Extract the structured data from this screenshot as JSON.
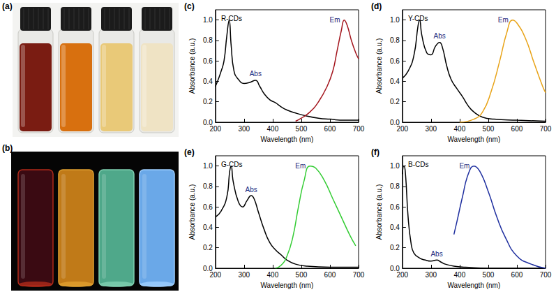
{
  "panels": [
    {
      "label": "(a)"
    },
    {
      "label": "(b)"
    }
  ],
  "chart_data": [
    {
      "label": "(c)",
      "type": "line",
      "title": "R-CDs",
      "x_label": "Wavelength (nm)",
      "y_label": "Absorbance (a.u.)",
      "xlim": [
        200,
        700
      ],
      "xticks": [
        200,
        300,
        400,
        500,
        600,
        700
      ],
      "ylim": [
        0,
        1.1
      ],
      "yticks": [
        {
          "value": 0,
          "label": "0.0"
        },
        {
          "value": 0.2,
          "label": "0.2"
        },
        {
          "value": 0.4,
          "label": "0.4"
        },
        {
          "value": 0.6,
          "label": "0.6"
        },
        {
          "value": 0.8,
          "label": "0.8"
        },
        {
          "value": 1,
          "label": "1.0"
        }
      ],
      "grid": false,
      "series": [
        {
          "name": "Abs",
          "color": "#000000",
          "x": [
            200,
            210,
            220,
            230,
            240,
            248,
            255,
            265,
            280,
            300,
            320,
            340,
            355,
            370,
            390,
            410,
            430,
            450,
            480,
            520,
            560,
            600,
            650,
            700
          ],
          "values": [
            0.35,
            0.42,
            0.5,
            0.6,
            0.85,
            1.0,
            0.75,
            0.5,
            0.42,
            0.38,
            0.39,
            0.41,
            0.35,
            0.28,
            0.22,
            0.19,
            0.15,
            0.12,
            0.09,
            0.06,
            0.04,
            0.03,
            0.02,
            0.02
          ]
        },
        {
          "name": "Em",
          "color": "#a3141c",
          "x": [
            480,
            500,
            530,
            560,
            590,
            610,
            625,
            640,
            650,
            660,
            675,
            690,
            700
          ],
          "values": [
            0.01,
            0.04,
            0.1,
            0.2,
            0.35,
            0.5,
            0.7,
            0.9,
            1.0,
            0.95,
            0.8,
            0.68,
            0.62
          ]
        }
      ]
    },
    {
      "label": "(d)",
      "type": "line",
      "title": "Y-CDs",
      "x_label": "Wavelength (nm)",
      "y_label": "Absorbance (a.u.)",
      "xlim": [
        200,
        700
      ],
      "xticks": [
        200,
        300,
        400,
        500,
        600,
        700
      ],
      "ylim": [
        0,
        1.1
      ],
      "yticks": [
        {
          "value": 0,
          "label": "0.0"
        },
        {
          "value": 0.2,
          "label": "0.2"
        },
        {
          "value": 0.4,
          "label": "0.4"
        },
        {
          "value": 0.6,
          "label": "0.6"
        },
        {
          "value": 0.8,
          "label": "0.8"
        },
        {
          "value": 1,
          "label": "1.0"
        }
      ],
      "grid": false,
      "series": [
        {
          "name": "Abs",
          "color": "#000000",
          "x": [
            200,
            220,
            240,
            255,
            260,
            268,
            285,
            300,
            315,
            330,
            340,
            355,
            370,
            390,
            410,
            430,
            450,
            480,
            520,
            600,
            700
          ],
          "values": [
            0.43,
            0.5,
            0.65,
            0.95,
            1.0,
            0.85,
            0.68,
            0.66,
            0.74,
            0.78,
            0.73,
            0.55,
            0.42,
            0.33,
            0.25,
            0.16,
            0.1,
            0.05,
            0.03,
            0.02,
            0.01
          ]
        },
        {
          "name": "Em",
          "color": "#e8a317",
          "x": [
            400,
            450,
            480,
            510,
            540,
            565,
            585,
            600,
            630,
            660,
            690,
            700
          ],
          "values": [
            0.0,
            0.03,
            0.1,
            0.3,
            0.6,
            0.88,
            1.0,
            0.97,
            0.82,
            0.58,
            0.35,
            0.29
          ]
        }
      ]
    },
    {
      "label": "(e)",
      "type": "line",
      "title": "G-CDs",
      "x_label": "Wavelength (nm)",
      "y_label": "Absorbance (a.u.)",
      "xlim": [
        200,
        700
      ],
      "xticks": [
        200,
        300,
        400,
        500,
        600,
        700
      ],
      "ylim": [
        0,
        1.1
      ],
      "yticks": [
        {
          "value": 0,
          "label": "0.0"
        },
        {
          "value": 0.2,
          "label": "0.2"
        },
        {
          "value": 0.4,
          "label": "0.4"
        },
        {
          "value": 0.6,
          "label": "0.6"
        },
        {
          "value": 0.8,
          "label": "0.8"
        },
        {
          "value": 1,
          "label": "1.0"
        }
      ],
      "grid": false,
      "series": [
        {
          "name": "Abs",
          "color": "#000000",
          "x": [
            200,
            220,
            240,
            250,
            255,
            262,
            280,
            295,
            310,
            325,
            335,
            350,
            370,
            390,
            410,
            430,
            450,
            480,
            520,
            600,
            700
          ],
          "values": [
            0.5,
            0.56,
            0.7,
            0.95,
            1.0,
            0.85,
            0.65,
            0.6,
            0.66,
            0.71,
            0.68,
            0.55,
            0.38,
            0.25,
            0.18,
            0.13,
            0.08,
            0.04,
            0.02,
            0.01,
            0.01
          ]
        },
        {
          "name": "Em",
          "color": "#33cc33",
          "x": [
            410,
            430,
            450,
            470,
            490,
            510,
            530,
            550,
            580,
            610,
            640,
            670,
            690
          ],
          "values": [
            0.0,
            0.03,
            0.12,
            0.3,
            0.6,
            0.86,
            1.0,
            0.98,
            0.86,
            0.68,
            0.5,
            0.32,
            0.22
          ]
        }
      ]
    },
    {
      "label": "(f)",
      "type": "line",
      "title": "B-CDs",
      "x_label": "Wavelength (nm)",
      "y_label": "Absorbance (a.u.)",
      "xlim": [
        200,
        700
      ],
      "xticks": [
        200,
        300,
        400,
        500,
        600,
        700
      ],
      "ylim": [
        0,
        1.1
      ],
      "yticks": [
        {
          "value": 0,
          "label": "0.0"
        },
        {
          "value": 0.2,
          "label": "0.2"
        },
        {
          "value": 0.4,
          "label": "0.4"
        },
        {
          "value": 0.6,
          "label": "0.6"
        },
        {
          "value": 0.8,
          "label": "0.8"
        },
        {
          "value": 1,
          "label": "1.0"
        }
      ],
      "grid": false,
      "series": [
        {
          "name": "Abs",
          "color": "#000000",
          "x": [
            200,
            205,
            210,
            220,
            230,
            240,
            260,
            280,
            300,
            320,
            335,
            350,
            380,
            420,
            500,
            600,
            700
          ],
          "values": [
            0.92,
            1.0,
            0.95,
            0.5,
            0.25,
            0.15,
            0.1,
            0.08,
            0.07,
            0.08,
            0.06,
            0.04,
            0.02,
            0.01,
            0.0,
            0.0,
            0.0
          ]
        },
        {
          "name": "Em",
          "color": "#1f2f9f",
          "x": [
            380,
            390,
            410,
            430,
            450,
            470,
            500,
            530,
            560,
            600,
            650,
            700
          ],
          "values": [
            0.33,
            0.45,
            0.7,
            0.92,
            1.0,
            0.95,
            0.75,
            0.5,
            0.3,
            0.12,
            0.04,
            0.0
          ]
        }
      ]
    }
  ]
}
